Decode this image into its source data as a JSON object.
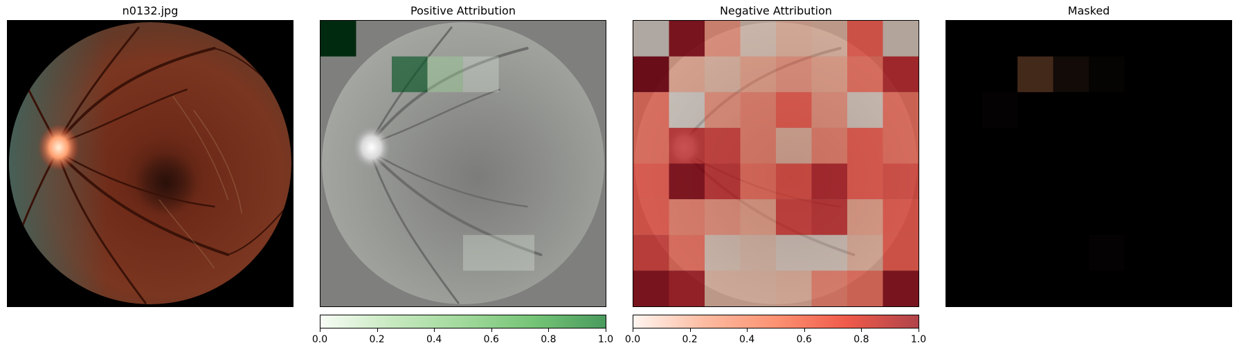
{
  "chart_data": [
    {
      "type": "image",
      "title": "n0132.jpg",
      "description_colors": {
        "fundus": "#7a2f1c",
        "optic_disc": "#ffb08a",
        "background": "#000000"
      }
    },
    {
      "type": "heatmap",
      "title": "Positive Attribution",
      "grid": [
        8,
        8
      ],
      "colormap": "Greens",
      "cells": [
        {
          "row": 0,
          "col": 0,
          "value": 1.0
        },
        {
          "row": 1,
          "col": 2,
          "value": 0.75
        },
        {
          "row": 1,
          "col": 3,
          "value": 0.3
        },
        {
          "row": 1,
          "col": 4,
          "value": 0.05
        },
        {
          "row": 6,
          "col": 4,
          "value": 0.05
        },
        {
          "row": 6,
          "col": 5,
          "value": 0.05
        }
      ],
      "colorbar": {
        "range": [
          0,
          1
        ],
        "ticks": [
          "0.0",
          "0.2",
          "0.4",
          "0.6",
          "0.8",
          "1.0"
        ]
      }
    },
    {
      "type": "heatmap",
      "title": "Negative Attribution",
      "grid": [
        8,
        8
      ],
      "colormap": "Reds",
      "values": [
        [
          0.05,
          0.95,
          0.45,
          0.15,
          0.3,
          0.25,
          0.6,
          0.1
        ],
        [
          1.0,
          0.35,
          0.25,
          0.4,
          0.45,
          0.4,
          0.55,
          0.8
        ],
        [
          0.55,
          0.05,
          0.45,
          0.5,
          0.6,
          0.45,
          0.1,
          0.55
        ],
        [
          0.55,
          0.75,
          0.7,
          0.5,
          0.3,
          0.5,
          0.6,
          0.55
        ],
        [
          0.6,
          0.95,
          0.75,
          0.55,
          0.65,
          0.8,
          0.6,
          0.65
        ],
        [
          0.6,
          0.5,
          0.45,
          0.4,
          0.7,
          0.75,
          0.4,
          0.6
        ],
        [
          0.7,
          0.55,
          0.15,
          0.2,
          0.1,
          0.1,
          0.3,
          0.6
        ],
        [
          0.95,
          0.85,
          0.25,
          0.25,
          0.3,
          0.5,
          0.55,
          0.95
        ]
      ],
      "colorbar": {
        "range": [
          0,
          1
        ],
        "ticks": [
          "0.0",
          "0.2",
          "0.4",
          "0.6",
          "0.8",
          "1.0"
        ]
      }
    },
    {
      "type": "image",
      "title": "Masked",
      "visible_cells": [
        {
          "row": 1,
          "col": 2,
          "opacity": 0.55
        },
        {
          "row": 1,
          "col": 3,
          "opacity": 0.15
        },
        {
          "row": 1,
          "col": 4,
          "opacity": 0.05
        },
        {
          "row": 2,
          "col": 1,
          "opacity": 0.03
        },
        {
          "row": 6,
          "col": 4,
          "opacity": 0.03
        }
      ]
    }
  ]
}
